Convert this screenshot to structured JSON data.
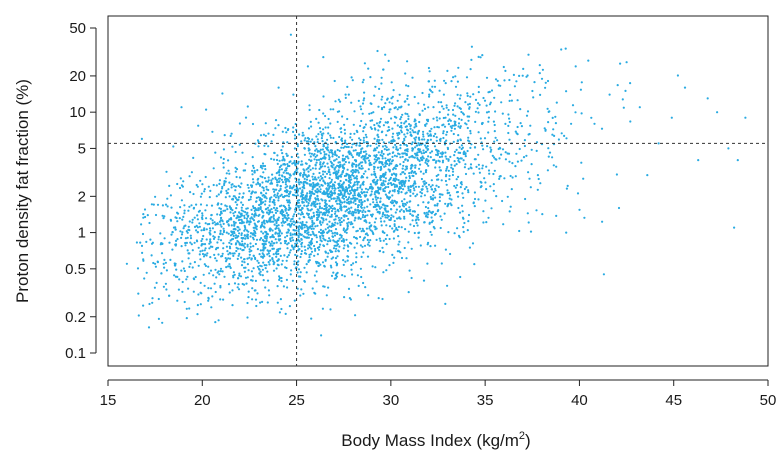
{
  "chart_data": {
    "type": "scatter",
    "title": "",
    "xlabel": "Body Mass Index (kg/m",
    "xlabel_superscript": "2",
    "xlabel_suffix": ")",
    "ylabel": "Proton density fat fraction (%)",
    "x_ticks": [
      15,
      20,
      25,
      30,
      35,
      40,
      45,
      50
    ],
    "x_tick_labels": [
      "15",
      "20",
      "25",
      "30",
      "35",
      "40",
      "45",
      "50"
    ],
    "y_ticks": [
      0.1,
      0.2,
      0.5,
      1,
      2,
      5,
      10,
      20,
      50
    ],
    "y_tick_labels": [
      "0.1",
      "0.2",
      "0.5",
      "1",
      "2",
      "5",
      "10",
      "20",
      "50"
    ],
    "xlim": [
      15,
      50
    ],
    "ylim": [
      0.1,
      50
    ],
    "y_scale": "log",
    "grid": false,
    "legend": "none",
    "reference_lines": [
      {
        "orientation": "vertical",
        "x": 25,
        "style": "dashed"
      },
      {
        "orientation": "horizontal",
        "y": 5.5,
        "style": "dashed"
      }
    ],
    "point_color": "#29abe2",
    "point_count_approx": 4000,
    "series": [
      {
        "values": [
          [
            16.0,
            0.55
          ],
          [
            16.8,
            6.0
          ],
          [
            17.2,
            1.2
          ],
          [
            17.5,
            0.55
          ],
          [
            17.8,
            0.8
          ],
          [
            18.1,
            3.2
          ],
          [
            18.5,
            1.1
          ],
          [
            18.9,
            11.0
          ],
          [
            19.4,
            0.9
          ],
          [
            19.9,
            0.6
          ],
          [
            20.2,
            10.5
          ],
          [
            20.5,
            1.4
          ],
          [
            20.9,
            0.45
          ],
          [
            21.3,
            1.0
          ],
          [
            21.6,
            0.25
          ],
          [
            22.0,
            1.2
          ],
          [
            22.4,
            0.26
          ],
          [
            22.8,
            1.6
          ],
          [
            23.0,
            0.5
          ],
          [
            23.4,
            2.4
          ],
          [
            23.9,
            1.0
          ],
          [
            24.2,
            0.42
          ],
          [
            24.5,
            0.35
          ],
          [
            24.7,
            44.0
          ],
          [
            25.2,
            0.3
          ],
          [
            25.6,
            24.0
          ],
          [
            25.9,
            1.8
          ],
          [
            26.3,
            0.14
          ],
          [
            26.8,
            0.23
          ],
          [
            27.2,
            2.8
          ],
          [
            27.6,
            14.0
          ],
          [
            28.1,
            4.0
          ],
          [
            28.4,
            1.3
          ],
          [
            28.8,
            23.0
          ],
          [
            29.3,
            6.5
          ],
          [
            29.7,
            30.0
          ],
          [
            30.2,
            2.2
          ],
          [
            30.6,
            9.5
          ],
          [
            31.1,
            0.42
          ],
          [
            31.5,
            1.0
          ],
          [
            32.0,
            18.0
          ],
          [
            32.5,
            4.5
          ],
          [
            33.0,
            22.0
          ],
          [
            33.4,
            8.0
          ],
          [
            33.9,
            1.2
          ],
          [
            34.3,
            35.0
          ],
          [
            34.8,
            2.6
          ],
          [
            35.3,
            12.0
          ],
          [
            35.8,
            5.0
          ],
          [
            36.3,
            1.5
          ],
          [
            36.8,
            20.0
          ],
          [
            37.3,
            30.0
          ],
          [
            37.8,
            3.0
          ],
          [
            38.2,
            7.0
          ],
          [
            38.8,
            12.0
          ],
          [
            39.3,
            1.0
          ],
          [
            39.8,
            24.0
          ],
          [
            40.2,
            2.8
          ],
          [
            40.8,
            8.0
          ],
          [
            41.3,
            0.45
          ],
          [
            41.6,
            14.0
          ],
          [
            42.1,
            1.6
          ],
          [
            42.5,
            26.0
          ],
          [
            43.2,
            11.0
          ],
          [
            43.6,
            3.0
          ],
          [
            44.2,
            5.5
          ],
          [
            44.9,
            9.0
          ],
          [
            45.6,
            16.0
          ],
          [
            46.3,
            4.0
          ],
          [
            46.8,
            13.0
          ],
          [
            47.3,
            10.0
          ],
          [
            47.9,
            5.0
          ],
          [
            48.2,
            1.1
          ],
          [
            48.4,
            4.0
          ],
          [
            48.8,
            9.0
          ]
        ]
      }
    ]
  }
}
